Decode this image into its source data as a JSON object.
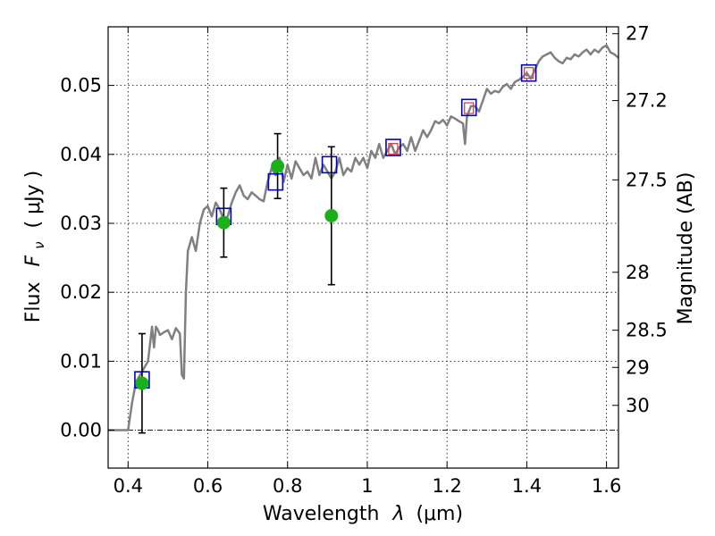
{
  "chart_data": {
    "type": "line",
    "xlabel": "Wavelength",
    "xlabel_symbol": "λ",
    "xlabel_unit": "(μm)",
    "ylabel": "Flux",
    "ylabel_symbol": "F",
    "ylabel_sub": "ν",
    "ylabel_unit": "( μJy )",
    "y2label": "Magnitude (AB)",
    "xlim": [
      0.35,
      1.63
    ],
    "ylim": [
      -0.0055,
      0.0585
    ],
    "x_ticks": [
      0.4,
      0.6,
      0.8,
      1.0,
      1.2,
      1.4,
      1.6
    ],
    "x_tick_labels": [
      "0.4",
      "0.6",
      "0.8",
      "1",
      "1.2",
      "1.4",
      "1.6"
    ],
    "y_ticks": [
      0.0,
      0.01,
      0.02,
      0.03,
      0.04,
      0.05
    ],
    "y_tick_labels": [
      "0.00",
      "0.01",
      "0.02",
      "0.03",
      "0.04",
      "0.05"
    ],
    "mag_ticks": [
      {
        "label": "27",
        "flux": 0.0575
      },
      {
        "label": "27.2",
        "flux": 0.0478
      },
      {
        "label": "27.5",
        "flux": 0.0363
      },
      {
        "label": "28",
        "flux": 0.0229
      },
      {
        "label": "28.5",
        "flux": 0.0145
      },
      {
        "label": "29",
        "flux": 0.0091
      },
      {
        "label": "30",
        "flux": 0.0036
      }
    ],
    "grid": true,
    "series": [
      {
        "style": "line",
        "color": "#808080",
        "x": [
          0.35,
          0.4,
          0.41,
          0.42,
          0.43,
          0.44,
          0.45,
          0.46,
          0.465,
          0.47,
          0.475,
          0.48,
          0.49,
          0.5,
          0.51,
          0.52,
          0.53,
          0.535,
          0.54,
          0.545,
          0.55,
          0.56,
          0.57,
          0.58,
          0.59,
          0.6,
          0.61,
          0.62,
          0.63,
          0.64,
          0.65,
          0.66,
          0.67,
          0.68,
          0.69,
          0.7,
          0.71,
          0.72,
          0.73,
          0.74,
          0.75,
          0.76,
          0.77,
          0.78,
          0.79,
          0.8,
          0.81,
          0.82,
          0.83,
          0.84,
          0.85,
          0.86,
          0.87,
          0.88,
          0.89,
          0.9,
          0.91,
          0.92,
          0.93,
          0.94,
          0.95,
          0.96,
          0.97,
          0.98,
          0.99,
          1.0,
          1.01,
          1.02,
          1.03,
          1.04,
          1.05,
          1.06,
          1.07,
          1.08,
          1.09,
          1.1,
          1.11,
          1.12,
          1.13,
          1.14,
          1.15,
          1.16,
          1.17,
          1.18,
          1.19,
          1.2,
          1.21,
          1.22,
          1.23,
          1.24,
          1.245,
          1.25,
          1.26,
          1.27,
          1.28,
          1.29,
          1.3,
          1.31,
          1.32,
          1.33,
          1.34,
          1.35,
          1.36,
          1.37,
          1.38,
          1.39,
          1.4,
          1.41,
          1.42,
          1.43,
          1.44,
          1.45,
          1.46,
          1.47,
          1.48,
          1.49,
          1.5,
          1.51,
          1.52,
          1.53,
          1.54,
          1.55,
          1.56,
          1.57,
          1.58,
          1.59,
          1.6,
          1.61,
          1.62,
          1.63
        ],
        "y": [
          0.0,
          0.0,
          0.004,
          0.007,
          0.008,
          0.009,
          0.01,
          0.015,
          0.012,
          0.015,
          0.0145,
          0.0138,
          0.0142,
          0.0145,
          0.0132,
          0.0148,
          0.014,
          0.008,
          0.0075,
          0.02,
          0.026,
          0.028,
          0.026,
          0.03,
          0.032,
          0.0325,
          0.031,
          0.033,
          0.032,
          0.0305,
          0.031,
          0.033,
          0.0345,
          0.0355,
          0.034,
          0.0335,
          0.0345,
          0.034,
          0.0335,
          0.0332,
          0.036,
          0.038,
          0.037,
          0.0395,
          0.036,
          0.0385,
          0.0365,
          0.039,
          0.038,
          0.037,
          0.0375,
          0.0365,
          0.0395,
          0.037,
          0.0385,
          0.0375,
          0.0365,
          0.0375,
          0.0395,
          0.037,
          0.038,
          0.0375,
          0.0395,
          0.0385,
          0.0395,
          0.038,
          0.0405,
          0.0395,
          0.0415,
          0.0395,
          0.0405,
          0.0415,
          0.04,
          0.041,
          0.0415,
          0.0405,
          0.0425,
          0.0405,
          0.042,
          0.0435,
          0.0425,
          0.0435,
          0.0448,
          0.0445,
          0.045,
          0.0442,
          0.0455,
          0.0452,
          0.0448,
          0.0445,
          0.0415,
          0.0455,
          0.047,
          0.047,
          0.0462,
          0.0478,
          0.0495,
          0.0488,
          0.0492,
          0.049,
          0.0498,
          0.0502,
          0.0495,
          0.0505,
          0.0508,
          0.0512,
          0.0518,
          0.051,
          0.0522,
          0.0535,
          0.0542,
          0.0545,
          0.0548,
          0.054,
          0.0535,
          0.0532,
          0.054,
          0.0538,
          0.0545,
          0.0542,
          0.0548,
          0.0552,
          0.0545,
          0.0552,
          0.0548,
          0.0555,
          0.0558,
          0.0548,
          0.0545,
          0.054
        ]
      },
      {
        "style": "open-square",
        "color": "#0000cc",
        "x": [
          0.435,
          0.64,
          0.77,
          0.905,
          1.065,
          1.255,
          1.405
        ],
        "y": [
          0.0073,
          0.031,
          0.036,
          0.0385,
          0.041,
          0.0468,
          0.0518
        ]
      },
      {
        "style": "filled-circle",
        "color": "#1ab01a",
        "x": [
          0.435,
          0.64,
          0.775,
          0.91
        ],
        "y": [
          0.0068,
          0.0301,
          0.0383,
          0.0311
        ],
        "yerr": [
          0.0072,
          0.005,
          0.0047,
          0.01
        ]
      },
      {
        "style": "red-square",
        "color": "#e04040",
        "x": [
          1.065,
          1.255,
          1.405
        ],
        "y": [
          0.0408,
          0.0467,
          0.0518
        ]
      }
    ]
  }
}
